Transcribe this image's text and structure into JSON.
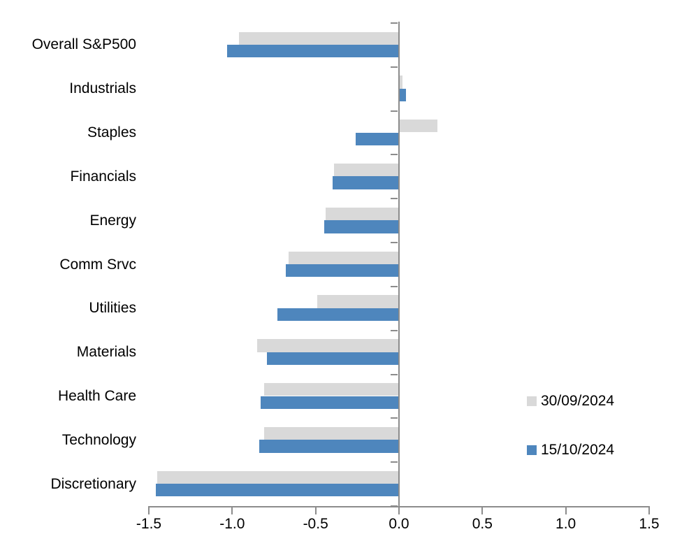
{
  "chart_data": {
    "type": "bar",
    "orientation": "horizontal",
    "title": "",
    "xlabel": "",
    "ylabel": "",
    "grid": false,
    "xlim": [
      -1.5,
      1.5
    ],
    "x_ticks": [
      -1.5,
      -1.0,
      -0.5,
      0.0,
      0.5,
      1.0,
      1.5
    ],
    "x_tick_labels": [
      "-1.5",
      "-1.0",
      "-0.5",
      "0.0",
      "0.5",
      "1.0",
      "1.5"
    ],
    "categories": [
      "Overall S&P500",
      "Industrials",
      "Staples",
      "Financials",
      "Energy",
      "Comm Srvc",
      "Utilities",
      "Materials",
      "Health Care",
      "Technology",
      "Discretionary"
    ],
    "series": [
      {
        "name": "30/09/2024",
        "color": "#d9d9d9",
        "values": [
          -0.96,
          0.02,
          0.23,
          -0.39,
          -0.44,
          -0.66,
          -0.49,
          -0.85,
          -0.81,
          -0.81,
          -1.45
        ]
      },
      {
        "name": "15/10/2024",
        "color": "#4e86bd",
        "values": [
          -1.03,
          0.04,
          -0.26,
          -0.4,
          -0.45,
          -0.68,
          -0.73,
          -0.79,
          -0.83,
          -0.84,
          -1.46
        ]
      }
    ],
    "legend_position": "right-middle",
    "axis_color": "#8c8c8c",
    "text_color": "#000000"
  }
}
